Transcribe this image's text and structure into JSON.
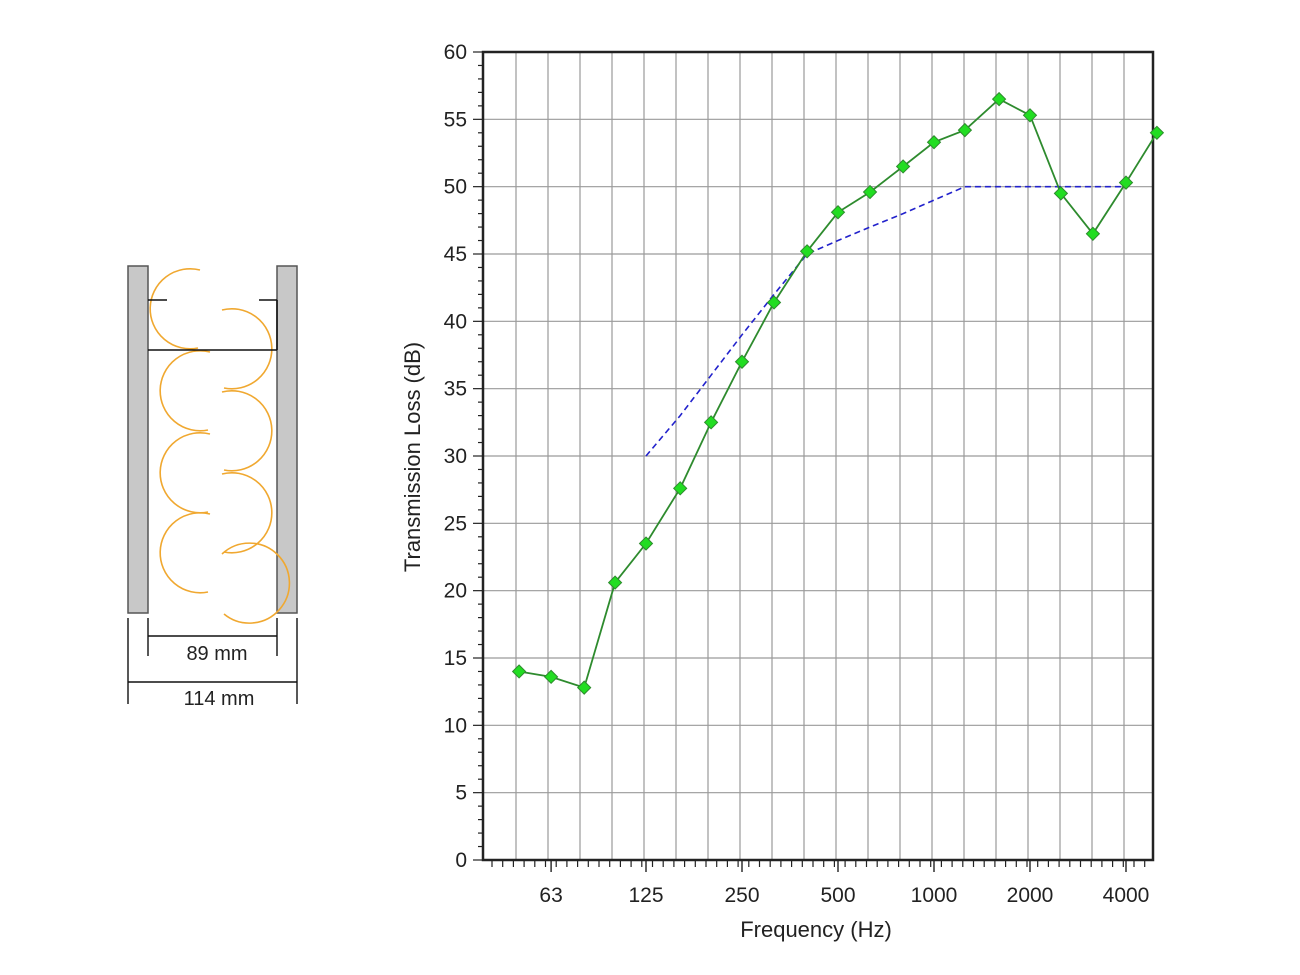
{
  "wall_section": {
    "inner_dim_label": "89 mm",
    "outer_dim_label": "114 mm",
    "insulation_color": "#f0a830",
    "board_color": "#c8c8c8"
  },
  "chart_data": {
    "type": "line",
    "xlabel": "Frequency (Hz)",
    "ylabel": "Transmission Loss (dB)",
    "x_scale": "log (1/3-octave bands)",
    "ylim": [
      0,
      60
    ],
    "y_ticks": [
      0,
      5,
      10,
      15,
      20,
      25,
      30,
      35,
      40,
      45,
      50,
      55,
      60
    ],
    "x_tick_labels": [
      "63",
      "125",
      "250",
      "500",
      "1000",
      "2000",
      "4000"
    ],
    "x_tick_values": [
      63,
      125,
      250,
      500,
      1000,
      2000,
      4000
    ],
    "grid": true,
    "series": [
      {
        "style": "solid line with diamond markers",
        "color": "#2e8b2e",
        "marker_color": "#22dd22",
        "points": [
          {
            "x": 50,
            "y": 14
          },
          {
            "x": 63,
            "y": 13.6
          },
          {
            "x": 80,
            "y": 12.8
          },
          {
            "x": 100,
            "y": 20.6
          },
          {
            "x": 125,
            "y": 23.5
          },
          {
            "x": 160,
            "y": 27.6
          },
          {
            "x": 200,
            "y": 32.5
          },
          {
            "x": 250,
            "y": 37
          },
          {
            "x": 315,
            "y": 41.4
          },
          {
            "x": 400,
            "y": 45.2
          },
          {
            "x": 500,
            "y": 48.1
          },
          {
            "x": 630,
            "y": 49.6
          },
          {
            "x": 800,
            "y": 51.5
          },
          {
            "x": 1000,
            "y": 53.3
          },
          {
            "x": 1250,
            "y": 54.2
          },
          {
            "x": 1600,
            "y": 56.5
          },
          {
            "x": 2000,
            "y": 55.3
          },
          {
            "x": 2500,
            "y": 49.5
          },
          {
            "x": 3150,
            "y": 46.5
          },
          {
            "x": 4000,
            "y": 50.3
          },
          {
            "x": 5000,
            "y": 54
          }
        ]
      },
      {
        "style": "dashed line (reference contour)",
        "color": "#2222cc",
        "points": [
          {
            "x": 125,
            "y": 30
          },
          {
            "x": 160,
            "y": 33
          },
          {
            "x": 200,
            "y": 36
          },
          {
            "x": 250,
            "y": 39
          },
          {
            "x": 315,
            "y": 42
          },
          {
            "x": 400,
            "y": 45
          },
          {
            "x": 500,
            "y": 46
          },
          {
            "x": 630,
            "y": 47
          },
          {
            "x": 800,
            "y": 48
          },
          {
            "x": 1000,
            "y": 49
          },
          {
            "x": 1250,
            "y": 50
          },
          {
            "x": 1600,
            "y": 50
          },
          {
            "x": 2000,
            "y": 50
          },
          {
            "x": 2500,
            "y": 50
          },
          {
            "x": 3150,
            "y": 50
          },
          {
            "x": 4000,
            "y": 50
          }
        ]
      }
    ]
  }
}
